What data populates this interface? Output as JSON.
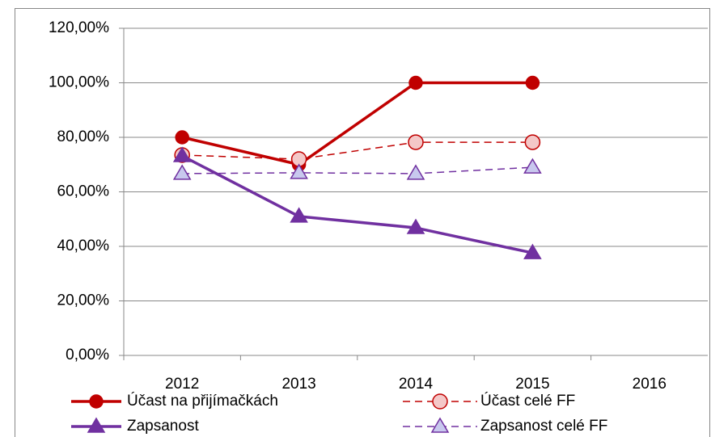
{
  "chart_data": {
    "type": "line",
    "categories": [
      "2012",
      "2013",
      "2014",
      "2015",
      "2016"
    ],
    "series": [
      {
        "name": "Účast na přijímačkách",
        "color": "#c00000",
        "fill": "#c00000",
        "marker": "circle",
        "dashed": false,
        "values": [
          80,
          70,
          100,
          100,
          null
        ]
      },
      {
        "name": "Účast celé FF",
        "color": "#c00000",
        "fill": "#f4c8c8",
        "marker": "circle",
        "dashed": true,
        "values": [
          73.5,
          72,
          78.2,
          78.2,
          null
        ]
      },
      {
        "name": "Zapsanost",
        "color": "#7030a0",
        "fill": "#7030a0",
        "marker": "triangle",
        "dashed": false,
        "values": [
          73.2,
          51,
          46.8,
          37.6,
          null
        ]
      },
      {
        "name": "Zapsanost  celé FF",
        "color": "#7030a0",
        "fill": "#c8c8ee",
        "marker": "triangle",
        "dashed": true,
        "values": [
          66.7,
          67,
          66.7,
          69,
          null
        ]
      }
    ],
    "ylim": [
      0,
      120
    ],
    "yticks": [
      {
        "value": 0,
        "label": "0,00%"
      },
      {
        "value": 20,
        "label": "20,00%"
      },
      {
        "value": 40,
        "label": "40,00%"
      },
      {
        "value": 60,
        "label": "60,00%"
      },
      {
        "value": 80,
        "label": "80,00%"
      },
      {
        "value": 100,
        "label": "100,00%"
      },
      {
        "value": 120,
        "label": "120,00%"
      }
    ],
    "grid": true,
    "legend": "bottom"
  }
}
